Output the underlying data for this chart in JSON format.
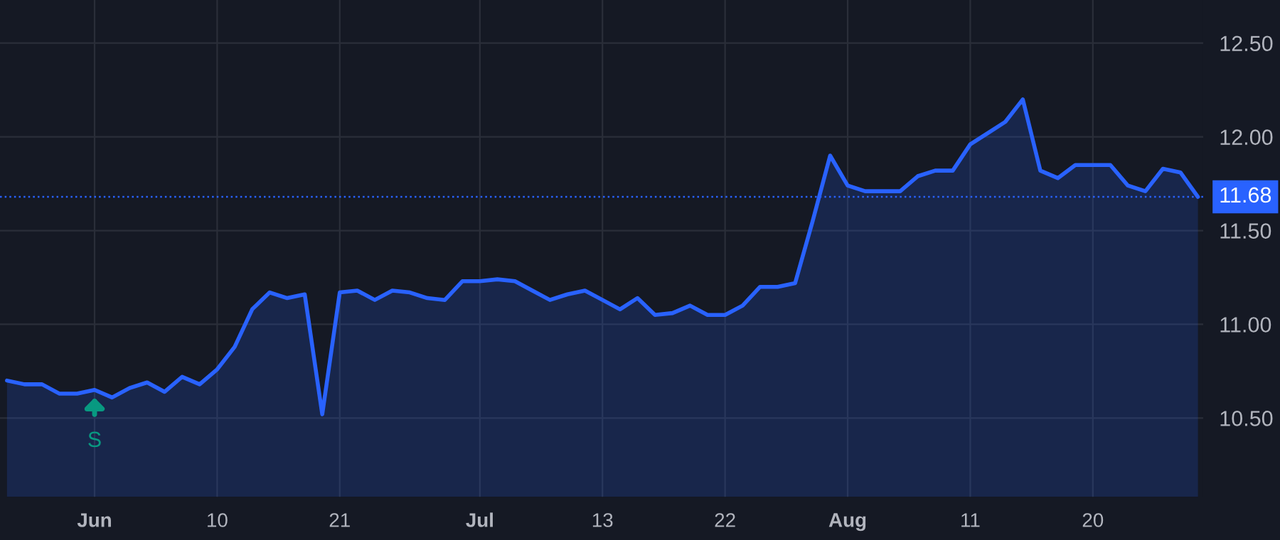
{
  "chart_data": {
    "type": "area",
    "categories": [
      null,
      null,
      null,
      null,
      null,
      "Jun",
      null,
      null,
      null,
      null,
      null,
      null,
      "10",
      null,
      null,
      null,
      null,
      null,
      null,
      "21",
      null,
      null,
      null,
      null,
      null,
      null,
      null,
      "Jul",
      null,
      null,
      null,
      null,
      null,
      null,
      "13",
      null,
      null,
      null,
      null,
      null,
      null,
      "22",
      null,
      null,
      null,
      null,
      null,
      null,
      "Aug",
      null,
      null,
      null,
      null,
      null,
      null,
      "11",
      null,
      null,
      null,
      null,
      null,
      null,
      "20",
      null,
      null,
      null,
      null,
      null,
      null
    ],
    "series": [
      {
        "color": "#2962ff",
        "values": [
          10.7,
          10.68,
          10.68,
          10.63,
          10.63,
          10.65,
          10.61,
          10.66,
          10.69,
          10.64,
          10.72,
          10.68,
          10.76,
          10.88,
          11.08,
          11.17,
          11.14,
          11.16,
          10.52,
          11.17,
          11.18,
          11.13,
          11.18,
          11.17,
          11.14,
          11.13,
          11.23,
          11.23,
          11.24,
          11.23,
          11.18,
          11.13,
          11.16,
          11.18,
          11.13,
          11.08,
          11.14,
          11.05,
          11.06,
          11.1,
          11.05,
          11.05,
          11.1,
          11.2,
          11.2,
          11.22,
          11.55,
          11.9,
          11.74,
          11.71,
          11.71,
          11.71,
          11.79,
          11.82,
          11.82,
          11.96,
          12.02,
          12.08,
          12.2,
          11.82,
          11.78,
          11.85,
          11.85,
          11.85,
          11.74,
          11.71,
          11.83,
          11.81,
          11.68
        ]
      }
    ],
    "ylim": [
      10.08,
      12.73
    ],
    "yticks": [
      {
        "value": 10.5,
        "label": "10.50"
      },
      {
        "value": 11.0,
        "label": "11.00"
      },
      {
        "value": 11.5,
        "label": "11.50"
      },
      {
        "value": 12.0,
        "label": "12.00"
      },
      {
        "value": 12.5,
        "label": "12.50"
      }
    ],
    "grid": true,
    "ref_lines": [
      {
        "axis": "y",
        "value": 11.68,
        "label": "11.68",
        "color": "#2962ff",
        "line_style": "dotted"
      }
    ],
    "annotations": [
      {
        "text": "S",
        "x": "Jun",
        "y": 10.65
      }
    ]
  }
}
